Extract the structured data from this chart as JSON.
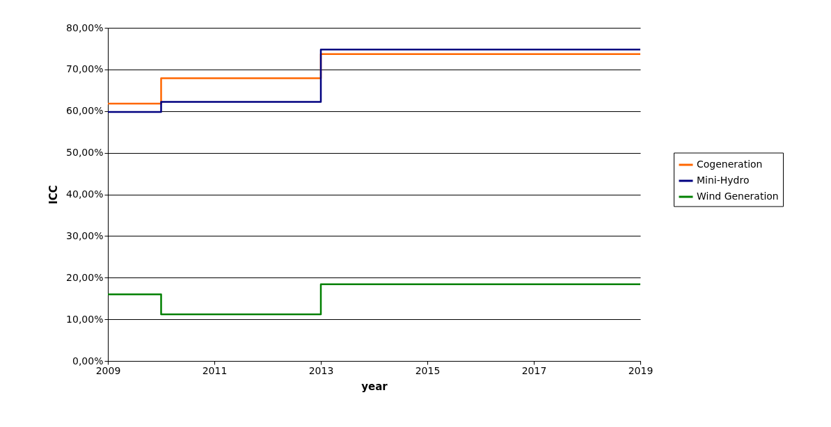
{
  "chart_data": {
    "type": "step",
    "xlabel": "year",
    "ylabel": "ICC",
    "xlim": [
      2009,
      2019
    ],
    "xticks": [
      2009,
      2011,
      2013,
      2015,
      2017,
      2019
    ],
    "ylim": [
      0,
      80
    ],
    "yticks": [
      {
        "value": 0,
        "label": "0,00%"
      },
      {
        "value": 10,
        "label": "10,00%"
      },
      {
        "value": 20,
        "label": "20,00%"
      },
      {
        "value": 30,
        "label": "30,00%"
      },
      {
        "value": 40,
        "label": "40,00%"
      },
      {
        "value": 50,
        "label": "50,00%"
      },
      {
        "value": 60,
        "label": "60,00%"
      },
      {
        "value": 70,
        "label": "70,00%"
      },
      {
        "value": 80,
        "label": "80,00%"
      }
    ],
    "grid": "y",
    "legend": "right",
    "series": [
      {
        "name": "Cogeneration",
        "color": "#ff6600",
        "x": [
          2009,
          2010,
          2013,
          2019
        ],
        "values": [
          61.8,
          67.9,
          73.7,
          73.7
        ]
      },
      {
        "name": "Mini-Hydro",
        "color": "#000080",
        "x": [
          2009,
          2010,
          2013,
          2019
        ],
        "values": [
          59.8,
          62.2,
          74.8,
          74.8
        ]
      },
      {
        "name": "Wind Generation",
        "color": "#008000",
        "x": [
          2009,
          2010,
          2013,
          2019
        ],
        "values": [
          16,
          11.2,
          18.4,
          18.4
        ]
      }
    ]
  }
}
